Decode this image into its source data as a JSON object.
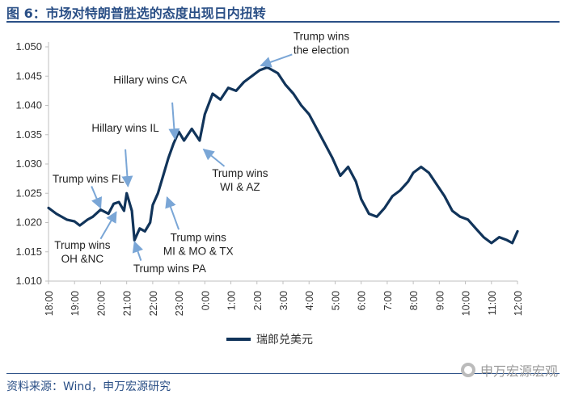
{
  "figure": {
    "title": "图 6：市场对特朗普胜选的态度出现日内扭转",
    "source": "资料来源：Wind，申万宏源研究",
    "watermark": "申万宏源宏观"
  },
  "colors": {
    "line": "#11345a",
    "title": "#2a4f86",
    "axis": "#bfbfbf",
    "arrow": "#7aa6d6"
  },
  "chart_data": {
    "type": "line",
    "title": "",
    "xlabel": "",
    "ylabel": "",
    "x_ticks": [
      "18:00",
      "19:00",
      "20:00",
      "21:00",
      "22:00",
      "23:00",
      "0:00",
      "1:00",
      "2:00",
      "3:00",
      "4:00",
      "5:00",
      "6:00",
      "7:00",
      "8:00",
      "9:00",
      "10:00",
      "11:00",
      "12:00"
    ],
    "y_ticks": [
      "1.050",
      "1.045",
      "1.040",
      "1.035",
      "1.030",
      "1.025",
      "1.020",
      "1.015",
      "1.010"
    ],
    "ylim": [
      1.01,
      1.05
    ],
    "grid": false,
    "legend_position": "bottom",
    "series": [
      {
        "name": "瑞郎兑美元",
        "x": [
          0,
          0.3,
          0.7,
          1.0,
          1.2,
          1.5,
          1.7,
          2.0,
          2.3,
          2.5,
          2.7,
          2.9,
          3.0,
          3.2,
          3.3,
          3.5,
          3.7,
          3.9,
          4.0,
          4.2,
          4.4,
          4.6,
          4.8,
          5.0,
          5.2,
          5.5,
          5.8,
          6.0,
          6.3,
          6.6,
          6.9,
          7.2,
          7.5,
          7.8,
          8.1,
          8.4,
          8.8,
          9.1,
          9.4,
          9.7,
          10.0,
          10.3,
          10.6,
          10.9,
          11.2,
          11.5,
          11.8,
          12.0,
          12.3,
          12.6,
          12.9,
          13.2,
          13.5,
          13.8,
          14.0,
          14.3,
          14.6,
          14.9,
          15.2,
          15.5,
          15.8,
          16.1,
          16.4,
          16.7,
          17.0,
          17.3,
          17.6,
          17.8,
          18.0
        ],
        "y": [
          1.0225,
          1.0215,
          1.0205,
          1.0202,
          1.0195,
          1.0205,
          1.021,
          1.0222,
          1.0215,
          1.0232,
          1.0235,
          1.022,
          1.025,
          1.022,
          1.017,
          1.019,
          1.0185,
          1.02,
          1.023,
          1.025,
          1.028,
          1.031,
          1.0335,
          1.0355,
          1.034,
          1.036,
          1.034,
          1.0385,
          1.042,
          1.041,
          1.043,
          1.0425,
          1.044,
          1.045,
          1.046,
          1.0465,
          1.0455,
          1.0435,
          1.042,
          1.04,
          1.0385,
          1.036,
          1.0335,
          1.031,
          1.028,
          1.0295,
          1.027,
          1.024,
          1.0215,
          1.021,
          1.0225,
          1.0245,
          1.0255,
          1.027,
          1.0285,
          1.0295,
          1.0285,
          1.0265,
          1.0245,
          1.022,
          1.021,
          1.0205,
          1.019,
          1.0175,
          1.0165,
          1.0175,
          1.017,
          1.0165,
          1.0185
        ]
      }
    ],
    "annotations": [
      {
        "id": "trump-fl",
        "lines": [
          "Trump wins FL"
        ]
      },
      {
        "id": "trump-oh",
        "lines": [
          "Trump wins",
          "OH &NC"
        ]
      },
      {
        "id": "hillary-il",
        "lines": [
          "Hillary wins IL"
        ]
      },
      {
        "id": "hillary-ca",
        "lines": [
          "Hillary wins CA"
        ]
      },
      {
        "id": "trump-pa",
        "lines": [
          "Trump wins PA"
        ]
      },
      {
        "id": "trump-mi",
        "lines": [
          "Trump wins",
          "MI & MO & TX"
        ]
      },
      {
        "id": "trump-wi",
        "lines": [
          "Trump wins",
          "WI & AZ"
        ]
      },
      {
        "id": "trump-election",
        "lines": [
          "Trump wins",
          "the election"
        ]
      }
    ]
  }
}
